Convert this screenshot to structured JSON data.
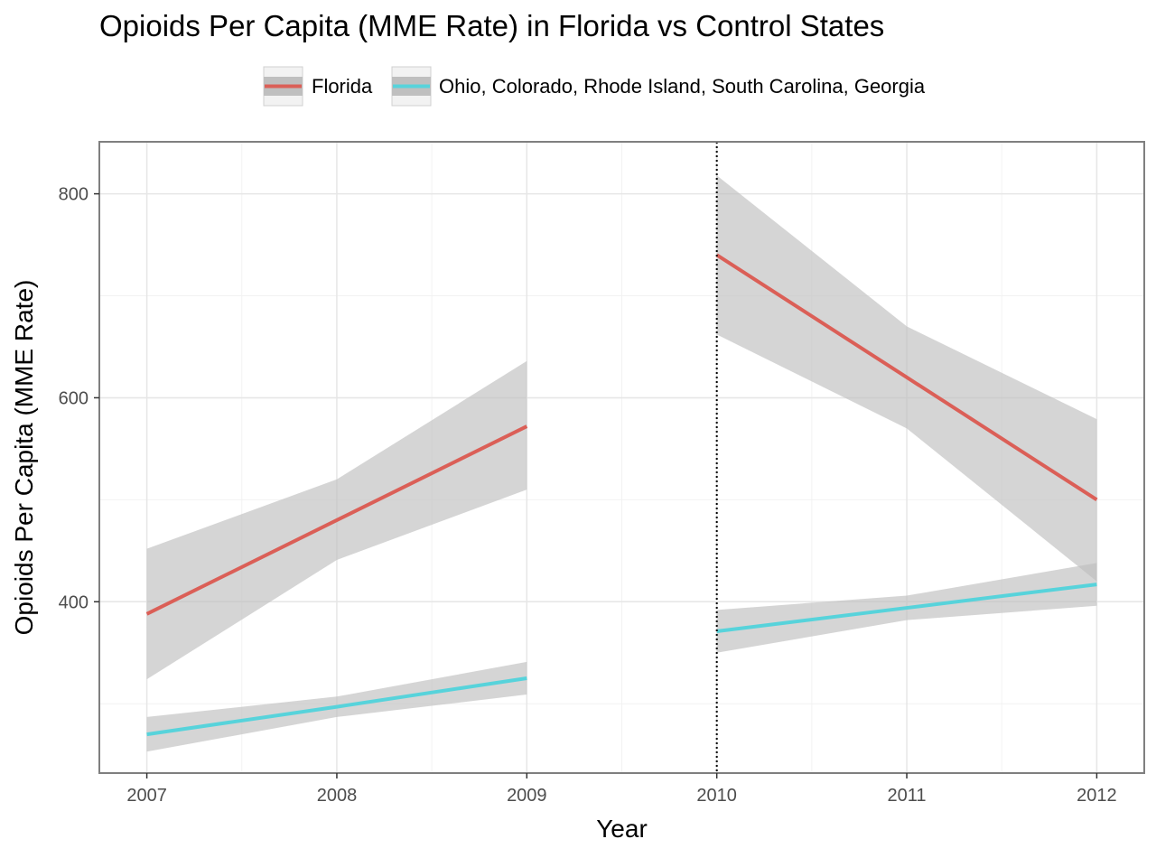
{
  "chart_data": {
    "type": "line",
    "title": "Opioids Per Capita (MME Rate) in Florida vs Control States",
    "xlabel": "Year",
    "ylabel": "Opioids Per Capita (MME Rate)",
    "xlim": [
      2006.75,
      2012.25
    ],
    "ylim": [
      232,
      851
    ],
    "x_ticks": [
      "2007",
      "2008",
      "2009",
      "2010",
      "2011",
      "2012"
    ],
    "y_ticks": [
      "400",
      "600",
      "800"
    ],
    "grid": true,
    "legend_position": "top",
    "vertical_line": {
      "x": 2010,
      "style": "dotted"
    },
    "series": [
      {
        "name": "Florida",
        "color": "#db5f57",
        "segments": [
          {
            "x": [
              2007,
              2008,
              2009
            ],
            "y": [
              388,
              480,
              572
            ],
            "ci_lower": [
              324,
              441,
              510
            ],
            "ci_upper": [
              452,
              520,
              636
            ]
          },
          {
            "x": [
              2010,
              2011,
              2012
            ],
            "y": [
              740,
              620,
              500
            ],
            "ci_lower": [
              662,
              570,
              420
            ],
            "ci_upper": [
              818,
              670,
              579
            ]
          }
        ]
      },
      {
        "name": "Ohio, Colorado, Rhode Island, South Carolina, Georgia",
        "color": "#57d3db",
        "segments": [
          {
            "x": [
              2007,
              2008,
              2009
            ],
            "y": [
              270,
              297,
              325
            ],
            "ci_lower": [
              253,
              287,
              309
            ],
            "ci_upper": [
              287,
              307,
              341
            ]
          },
          {
            "x": [
              2010,
              2011,
              2012
            ],
            "y": [
              371,
              394,
              417
            ],
            "ci_lower": [
              350,
              382,
              396
            ],
            "ci_upper": [
              392,
              406,
              438
            ]
          }
        ]
      }
    ]
  },
  "colors": {
    "ci_band": "#bfbfbf",
    "panel_border": "#7f7f7f",
    "grid_major": "#e6e6e6",
    "grid_minor": "#f2f2f2"
  }
}
